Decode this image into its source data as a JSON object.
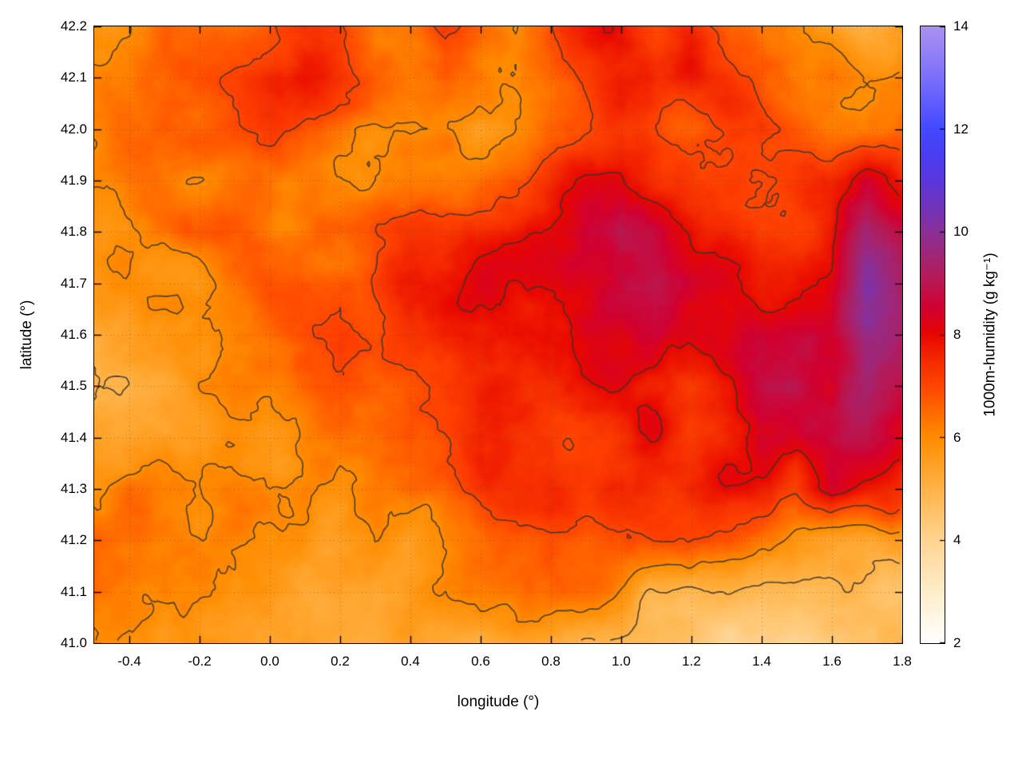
{
  "chart_data": {
    "type": "heatmap",
    "title": "",
    "xlabel": "longitude (°)",
    "ylabel": "latitude (°)",
    "colorbar_label": "1000m-humidity (g kg⁻¹)",
    "x_range": [
      -0.5,
      1.8
    ],
    "y_range": [
      41.0,
      42.2
    ],
    "x_tick_labels": [
      "-0.4",
      "-0.2",
      "0.0",
      "0.2",
      "0.4",
      "0.6",
      "0.8",
      "1.0",
      "1.2",
      "1.4",
      "1.6",
      "1.8"
    ],
    "y_tick_labels": [
      "41.0",
      "41.1",
      "41.2",
      "41.3",
      "41.4",
      "41.5",
      "41.6",
      "41.7",
      "41.8",
      "41.9",
      "42.0",
      "42.1",
      "42.2"
    ],
    "colorbar_range": [
      2,
      14
    ],
    "colorbar_tick_labels": [
      "2",
      "4",
      "6",
      "8",
      "10",
      "12",
      "14"
    ],
    "grid_on": true,
    "legend": "colorbar-right",
    "contour_levels": [
      5,
      6,
      7,
      8
    ],
    "contour_color": "#333333",
    "grid": {
      "lon_start": -0.5,
      "lon_step": 0.1,
      "lat_start": 42.2,
      "lat_step": -0.1
    },
    "values": [
      [
        6.0,
        6.2,
        6.6,
        6.4,
        6.8,
        7.2,
        7.5,
        7.2,
        6.6,
        6.9,
        7.4,
        6.6,
        6.2,
        6.8,
        7.3,
        7.6,
        7.2,
        7.6,
        7.0,
        6.4,
        6.2,
        5.6,
        5.0,
        5.6
      ],
      [
        6.1,
        6.0,
        6.4,
        6.8,
        7.0,
        7.4,
        7.6,
        7.0,
        6.5,
        6.2,
        6.8,
        6.4,
        6.0,
        6.6,
        7.2,
        7.8,
        7.4,
        7.8,
        7.2,
        6.6,
        6.3,
        6.6,
        6.0,
        6.2
      ],
      [
        5.9,
        6.2,
        6.5,
        6.3,
        6.7,
        7.0,
        6.5,
        6.0,
        5.6,
        5.4,
        5.8,
        5.5,
        6.2,
        6.8,
        7.2,
        7.5,
        7.0,
        6.6,
        6.9,
        7.3,
        7.0,
        6.6,
        6.3,
        6.5
      ],
      [
        6.0,
        6.3,
        5.9,
        5.7,
        6.1,
        6.4,
        6.2,
        6.0,
        6.3,
        6.7,
        6.5,
        6.8,
        7.1,
        7.4,
        7.8,
        8.0,
        7.4,
        6.9,
        6.6,
        6.9,
        7.2,
        7.6,
        8.8,
        8.0
      ],
      [
        5.7,
        5.9,
        6.2,
        6.5,
        6.3,
        6.1,
        6.4,
        6.7,
        7.0,
        7.3,
        7.1,
        7.5,
        7.8,
        8.1,
        8.4,
        8.8,
        8.4,
        7.8,
        7.3,
        7.0,
        7.4,
        8.0,
        9.8,
        9.2
      ],
      [
        5.6,
        5.8,
        6.1,
        5.9,
        6.2,
        6.5,
        6.8,
        7.1,
        7.4,
        7.7,
        7.5,
        7.8,
        7.6,
        7.9,
        8.2,
        8.6,
        8.9,
        8.3,
        7.8,
        7.5,
        7.9,
        8.4,
        10.4,
        9.6
      ],
      [
        5.2,
        5.5,
        5.9,
        6.2,
        6.5,
        6.8,
        7.2,
        7.5,
        7.3,
        7.6,
        7.9,
        7.7,
        8.0,
        7.8,
        8.1,
        8.4,
        8.7,
        8.2,
        7.9,
        8.3,
        8.7,
        9.0,
        10.0,
        9.4
      ],
      [
        5.1,
        5.4,
        5.7,
        6.0,
        6.3,
        6.6,
        6.9,
        7.2,
        7.0,
        7.3,
        7.1,
        7.4,
        7.7,
        7.5,
        7.8,
        8.1,
        7.9,
        7.6,
        8.0,
        8.5,
        9.0,
        8.6,
        9.6,
        9.0
      ],
      [
        5.5,
        5.8,
        6.1,
        5.9,
        6.2,
        6.0,
        6.3,
        6.6,
        6.9,
        7.2,
        7.0,
        7.3,
        7.1,
        7.4,
        7.6,
        7.4,
        7.7,
        7.4,
        8.0,
        8.6,
        8.3,
        8.8,
        9.2,
        8.4
      ],
      [
        6.0,
        6.6,
        6.2,
        5.9,
        6.3,
        6.1,
        6.4,
        6.2,
        6.5,
        6.8,
        6.6,
        6.9,
        7.2,
        7.5,
        7.3,
        7.6,
        7.4,
        7.7,
        8.0,
        7.6,
        7.2,
        8.8,
        7.8,
        7.2
      ],
      [
        6.8,
        6.4,
        6.0,
        5.7,
        6.0,
        5.8,
        6.1,
        5.9,
        6.2,
        6.0,
        6.3,
        6.1,
        6.4,
        6.7,
        6.5,
        6.8,
        7.1,
        6.9,
        6.6,
        6.2,
        5.8,
        5.5,
        5.3,
        5.6
      ],
      [
        6.2,
        5.9,
        6.1,
        5.8,
        5.6,
        5.9,
        5.7,
        6.0,
        5.8,
        6.1,
        5.9,
        6.2,
        6.0,
        6.3,
        6.1,
        5.8,
        5.4,
        5.1,
        4.9,
        4.7,
        4.5,
        4.4,
        4.6,
        4.8
      ],
      [
        5.8,
        5.6,
        5.4,
        5.7,
        5.5,
        5.3,
        5.6,
        5.4,
        5.2,
        5.5,
        5.3,
        5.1,
        5.4,
        5.2,
        5.0,
        4.8,
        4.6,
        4.4,
        4.2,
        4.1,
        4.0,
        4.2,
        4.4,
        4.6
      ]
    ],
    "palette": [
      [
        2.0,
        "#ffffff"
      ],
      [
        3.0,
        "#ffeccb"
      ],
      [
        4.0,
        "#ffd491"
      ],
      [
        5.0,
        "#ffb347"
      ],
      [
        6.0,
        "#ff8c00"
      ],
      [
        6.5,
        "#ff6a00"
      ],
      [
        7.0,
        "#ff4500"
      ],
      [
        7.5,
        "#f52a00"
      ],
      [
        8.0,
        "#e80600"
      ],
      [
        8.5,
        "#d2002f"
      ],
      [
        9.0,
        "#ba1650"
      ],
      [
        9.5,
        "#a22573"
      ],
      [
        10.0,
        "#8a2f96"
      ],
      [
        10.5,
        "#7133bb"
      ],
      [
        11.0,
        "#5a36da"
      ],
      [
        11.5,
        "#4a3df2"
      ],
      [
        12.0,
        "#4348ff"
      ],
      [
        12.5,
        "#5f5bff"
      ],
      [
        13.0,
        "#7a6ffb"
      ],
      [
        13.5,
        "#9381f6"
      ],
      [
        14.0,
        "#aa90f0"
      ]
    ]
  }
}
